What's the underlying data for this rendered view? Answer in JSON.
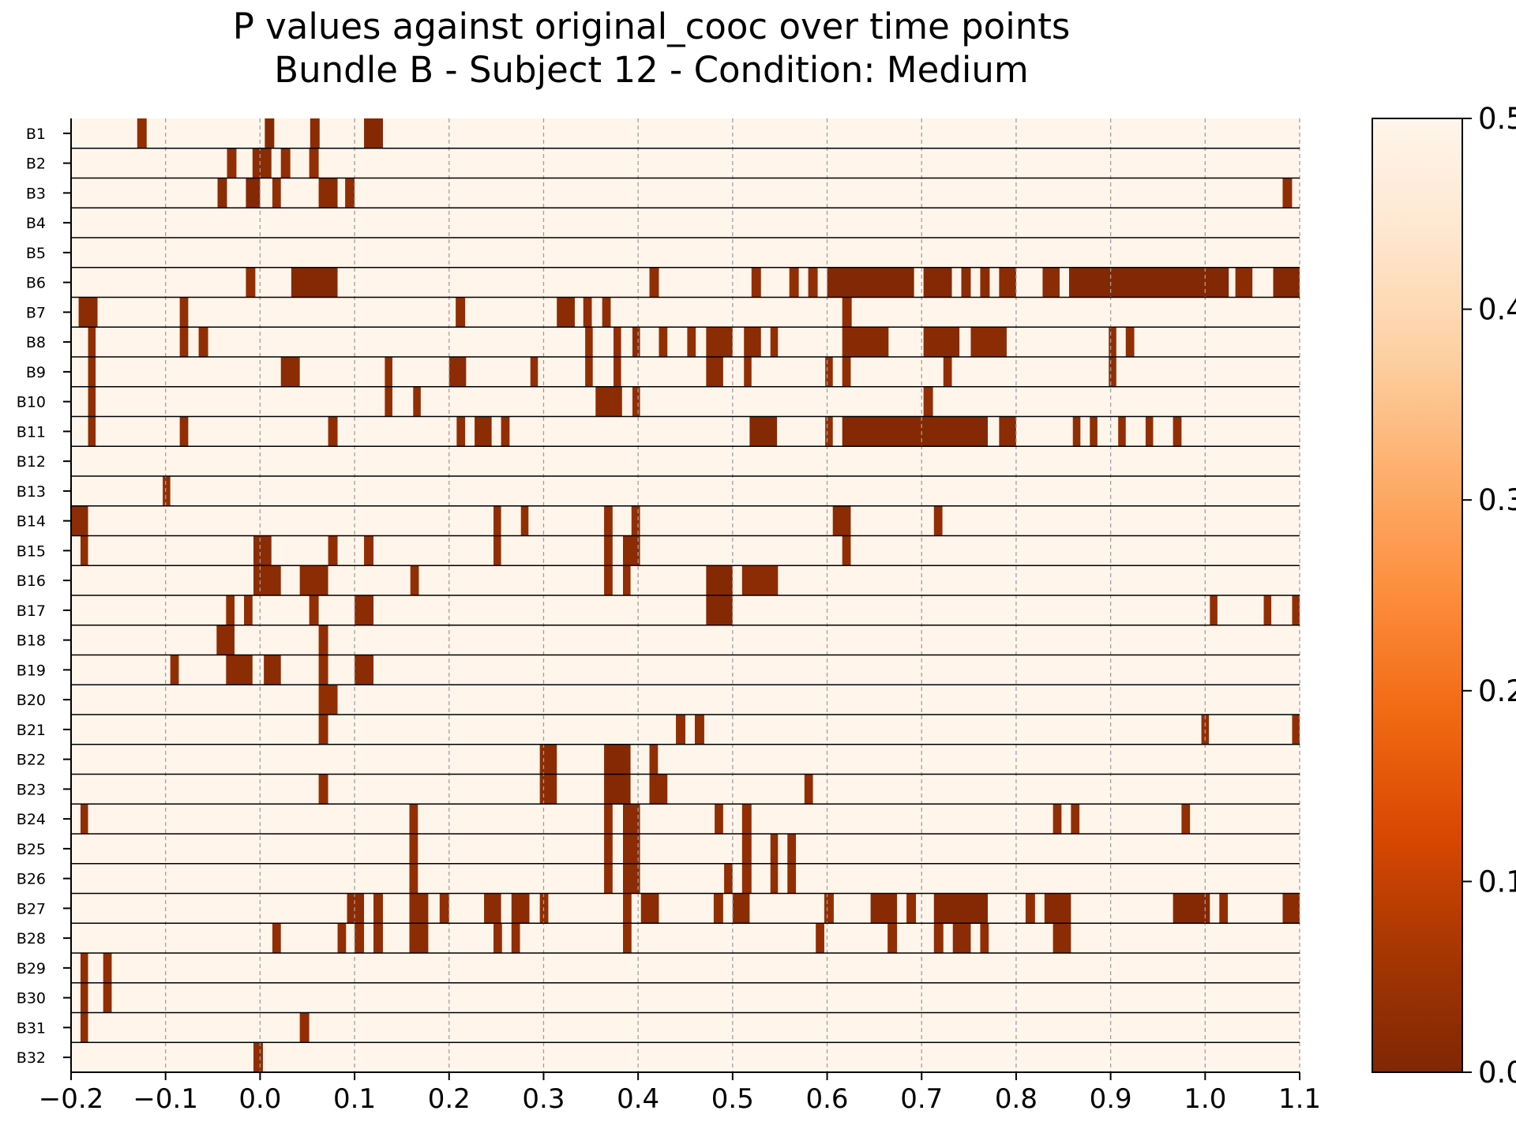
{
  "chart_data": {
    "type": "heatmap",
    "title": "P values against original_cooc over time points",
    "subtitle": "Bundle B - Subject 12 - Condition: Medium",
    "xlim": [
      -0.2,
      1.1
    ],
    "xticks": [
      "-0.2",
      "-0.1",
      "0.0",
      "0.1",
      "0.2",
      "0.3",
      "0.4",
      "0.5",
      "0.6",
      "0.7",
      "0.8",
      "0.9",
      "1.0",
      "1.1"
    ],
    "xtick_values": [
      -0.2,
      -0.1,
      0.0,
      0.1,
      0.2,
      0.3,
      0.4,
      0.5,
      0.6,
      0.7,
      0.8,
      0.9,
      1.0,
      1.1
    ],
    "grid_x": true,
    "colormap": {
      "name": "Oranges_r",
      "stops": [
        "#7f2704",
        "#a63603",
        "#d94801",
        "#f16913",
        "#fd8d3c",
        "#fdae6b",
        "#fdd0a2",
        "#fee6ce",
        "#fff5eb"
      ]
    },
    "colorbar": {
      "range": [
        0.0,
        0.5
      ],
      "ticks": [
        "0.0",
        "0.1",
        "0.2",
        "0.3",
        "0.4",
        "0.5"
      ],
      "tick_values": [
        0.0,
        0.1,
        0.2,
        0.3,
        0.4,
        0.5
      ]
    },
    "background_value": 0.5,
    "rows": [
      {
        "label": "B1",
        "segments": [
          [
            -0.13,
            -0.12,
            0.03
          ],
          [
            0.005,
            0.015,
            0.01
          ],
          [
            0.053,
            0.063,
            0.02
          ],
          [
            0.11,
            0.13,
            0.01
          ]
        ]
      },
      {
        "label": "B2",
        "segments": [
          [
            -0.035,
            -0.025,
            0.03
          ],
          [
            -0.008,
            0.012,
            0.02
          ],
          [
            0.022,
            0.032,
            0.03
          ],
          [
            0.052,
            0.062,
            0.03
          ]
        ]
      },
      {
        "label": "B3",
        "segments": [
          [
            -0.045,
            -0.035,
            0.02
          ],
          [
            -0.015,
            0.0,
            0.01
          ],
          [
            0.013,
            0.022,
            0.03
          ],
          [
            0.062,
            0.082,
            0.02
          ],
          [
            0.09,
            0.1,
            0.03
          ],
          [
            1.082,
            1.092,
            0.03
          ]
        ]
      },
      {
        "label": "B4",
        "segments": []
      },
      {
        "label": "B5",
        "segments": []
      },
      {
        "label": "B6",
        "segments": [
          [
            -0.015,
            -0.005,
            0.03
          ],
          [
            0.033,
            0.082,
            0.01
          ],
          [
            0.412,
            0.422,
            0.03
          ],
          [
            0.52,
            0.53,
            0.03
          ],
          [
            0.56,
            0.57,
            0.03
          ],
          [
            0.58,
            0.59,
            0.03
          ],
          [
            0.6,
            0.692,
            0.005
          ],
          [
            0.702,
            0.732,
            0.01
          ],
          [
            0.742,
            0.752,
            0.02
          ],
          [
            0.762,
            0.772,
            0.02
          ],
          [
            0.782,
            0.8,
            0.02
          ],
          [
            0.828,
            0.846,
            0.02
          ],
          [
            0.856,
            1.025,
            0.005
          ],
          [
            1.032,
            1.05,
            0.02
          ],
          [
            1.072,
            1.1,
            0.01
          ]
        ]
      },
      {
        "label": "B7",
        "segments": [
          [
            -0.192,
            -0.172,
            0.02
          ],
          [
            -0.085,
            -0.076,
            0.03
          ],
          [
            0.207,
            0.217,
            0.03
          ],
          [
            0.314,
            0.333,
            0.02
          ],
          [
            0.342,
            0.351,
            0.03
          ],
          [
            0.362,
            0.371,
            0.03
          ],
          [
            0.616,
            0.626,
            0.03
          ]
        ]
      },
      {
        "label": "B8",
        "segments": [
          [
            -0.182,
            -0.174,
            0.03
          ],
          [
            -0.085,
            -0.076,
            0.03
          ],
          [
            -0.065,
            -0.055,
            0.03
          ],
          [
            0.344,
            0.352,
            0.03
          ],
          [
            0.374,
            0.382,
            0.03
          ],
          [
            0.394,
            0.402,
            0.02
          ],
          [
            0.422,
            0.431,
            0.03
          ],
          [
            0.452,
            0.461,
            0.03
          ],
          [
            0.472,
            0.5,
            0.02
          ],
          [
            0.512,
            0.53,
            0.02
          ],
          [
            0.54,
            0.548,
            0.03
          ],
          [
            0.616,
            0.665,
            0.015
          ],
          [
            0.702,
            0.74,
            0.015
          ],
          [
            0.752,
            0.79,
            0.02
          ],
          [
            0.898,
            0.906,
            0.03
          ],
          [
            0.916,
            0.925,
            0.03
          ]
        ]
      },
      {
        "label": "B9",
        "segments": [
          [
            -0.182,
            -0.174,
            0.03
          ],
          [
            0.022,
            0.042,
            0.02
          ],
          [
            0.132,
            0.14,
            0.03
          ],
          [
            0.2,
            0.218,
            0.02
          ],
          [
            0.286,
            0.294,
            0.03
          ],
          [
            0.344,
            0.352,
            0.03
          ],
          [
            0.374,
            0.382,
            0.03
          ],
          [
            0.472,
            0.49,
            0.02
          ],
          [
            0.512,
            0.52,
            0.03
          ],
          [
            0.598,
            0.606,
            0.03
          ],
          [
            0.616,
            0.625,
            0.03
          ],
          [
            0.723,
            0.732,
            0.03
          ],
          [
            0.898,
            0.906,
            0.03
          ]
        ]
      },
      {
        "label": "B10",
        "segments": [
          [
            -0.182,
            -0.174,
            0.03
          ],
          [
            0.132,
            0.14,
            0.03
          ],
          [
            0.162,
            0.17,
            0.03
          ],
          [
            0.355,
            0.383,
            0.02
          ],
          [
            0.394,
            0.402,
            0.03
          ],
          [
            0.702,
            0.712,
            0.03
          ]
        ]
      },
      {
        "label": "B11",
        "segments": [
          [
            -0.182,
            -0.174,
            0.03
          ],
          [
            -0.085,
            -0.076,
            0.03
          ],
          [
            0.072,
            0.082,
            0.03
          ],
          [
            0.208,
            0.217,
            0.03
          ],
          [
            0.227,
            0.245,
            0.02
          ],
          [
            0.255,
            0.264,
            0.03
          ],
          [
            0.518,
            0.547,
            0.01
          ],
          [
            0.598,
            0.606,
            0.03
          ],
          [
            0.616,
            0.77,
            0.008
          ],
          [
            0.782,
            0.8,
            0.02
          ],
          [
            0.86,
            0.868,
            0.03
          ],
          [
            0.878,
            0.886,
            0.03
          ],
          [
            0.908,
            0.916,
            0.03
          ],
          [
            0.937,
            0.945,
            0.03
          ],
          [
            0.966,
            0.975,
            0.03
          ]
        ]
      },
      {
        "label": "B12",
        "segments": []
      },
      {
        "label": "B13",
        "segments": [
          [
            -0.103,
            -0.095,
            0.03
          ]
        ]
      },
      {
        "label": "B14",
        "segments": [
          [
            -0.2,
            -0.182,
            0.02
          ],
          [
            0.247,
            0.255,
            0.03
          ],
          [
            0.276,
            0.284,
            0.03
          ],
          [
            0.364,
            0.373,
            0.03
          ],
          [
            0.393,
            0.402,
            0.03
          ],
          [
            0.606,
            0.625,
            0.02
          ],
          [
            0.713,
            0.722,
            0.03
          ]
        ]
      },
      {
        "label": "B15",
        "segments": [
          [
            -0.19,
            -0.182,
            0.03
          ],
          [
            -0.007,
            0.012,
            0.02
          ],
          [
            0.072,
            0.082,
            0.03
          ],
          [
            0.11,
            0.12,
            0.03
          ],
          [
            0.247,
            0.255,
            0.03
          ],
          [
            0.364,
            0.373,
            0.03
          ],
          [
            0.384,
            0.402,
            0.02
          ],
          [
            0.616,
            0.625,
            0.03
          ]
        ]
      },
      {
        "label": "B16",
        "segments": [
          [
            -0.007,
            0.022,
            0.02
          ],
          [
            0.042,
            0.072,
            0.02
          ],
          [
            0.159,
            0.168,
            0.03
          ],
          [
            0.364,
            0.373,
            0.03
          ],
          [
            0.384,
            0.392,
            0.03
          ],
          [
            0.472,
            0.5,
            0.01
          ],
          [
            0.51,
            0.548,
            0.02
          ]
        ]
      },
      {
        "label": "B17",
        "segments": [
          [
            -0.036,
            -0.027,
            0.03
          ],
          [
            -0.017,
            -0.008,
            0.03
          ],
          [
            0.052,
            0.062,
            0.03
          ],
          [
            0.1,
            0.12,
            0.02
          ],
          [
            0.472,
            0.5,
            0.01
          ],
          [
            1.005,
            1.013,
            0.03
          ],
          [
            1.062,
            1.07,
            0.03
          ],
          [
            1.092,
            1.1,
            0.03
          ]
        ]
      },
      {
        "label": "B18",
        "segments": [
          [
            -0.046,
            -0.027,
            0.02
          ],
          [
            0.062,
            0.072,
            0.03
          ]
        ]
      },
      {
        "label": "B19",
        "segments": [
          [
            -0.095,
            -0.086,
            0.03
          ],
          [
            -0.036,
            -0.008,
            0.02
          ],
          [
            0.004,
            0.022,
            0.02
          ],
          [
            0.062,
            0.072,
            0.03
          ],
          [
            0.1,
            0.12,
            0.02
          ]
        ]
      },
      {
        "label": "B20",
        "segments": [
          [
            0.062,
            0.082,
            0.03
          ]
        ]
      },
      {
        "label": "B21",
        "segments": [
          [
            0.062,
            0.072,
            0.03
          ],
          [
            0.44,
            0.45,
            0.03
          ],
          [
            0.46,
            0.47,
            0.03
          ],
          [
            0.996,
            1.004,
            0.03
          ],
          [
            1.092,
            1.1,
            0.03
          ]
        ]
      },
      {
        "label": "B22",
        "segments": [
          [
            0.296,
            0.314,
            0.02
          ],
          [
            0.364,
            0.392,
            0.01
          ],
          [
            0.412,
            0.421,
            0.03
          ]
        ]
      },
      {
        "label": "B23",
        "segments": [
          [
            0.062,
            0.072,
            0.03
          ],
          [
            0.296,
            0.314,
            0.02
          ],
          [
            0.364,
            0.392,
            0.01
          ],
          [
            0.412,
            0.431,
            0.02
          ],
          [
            0.576,
            0.585,
            0.03
          ]
        ]
      },
      {
        "label": "B24",
        "segments": [
          [
            -0.19,
            -0.182,
            0.03
          ],
          [
            0.158,
            0.167,
            0.03
          ],
          [
            0.364,
            0.373,
            0.03
          ],
          [
            0.384,
            0.402,
            0.02
          ],
          [
            0.481,
            0.49,
            0.03
          ],
          [
            0.51,
            0.52,
            0.03
          ],
          [
            0.839,
            0.848,
            0.03
          ],
          [
            0.858,
            0.867,
            0.03
          ],
          [
            0.975,
            0.984,
            0.03
          ]
        ]
      },
      {
        "label": "B25",
        "segments": [
          [
            0.158,
            0.167,
            0.03
          ],
          [
            0.364,
            0.373,
            0.03
          ],
          [
            0.384,
            0.402,
            0.02
          ],
          [
            0.51,
            0.52,
            0.03
          ],
          [
            0.54,
            0.548,
            0.03
          ],
          [
            0.558,
            0.567,
            0.03
          ]
        ]
      },
      {
        "label": "B26",
        "segments": [
          [
            0.158,
            0.167,
            0.03
          ],
          [
            0.364,
            0.373,
            0.03
          ],
          [
            0.384,
            0.402,
            0.02
          ],
          [
            0.491,
            0.5,
            0.03
          ],
          [
            0.51,
            0.52,
            0.03
          ],
          [
            0.54,
            0.548,
            0.03
          ],
          [
            0.558,
            0.567,
            0.03
          ]
        ]
      },
      {
        "label": "B27",
        "segments": [
          [
            0.092,
            0.11,
            0.02
          ],
          [
            0.12,
            0.13,
            0.03
          ],
          [
            0.158,
            0.178,
            0.02
          ],
          [
            0.19,
            0.2,
            0.03
          ],
          [
            0.237,
            0.255,
            0.02
          ],
          [
            0.266,
            0.285,
            0.02
          ],
          [
            0.296,
            0.305,
            0.03
          ],
          [
            0.384,
            0.393,
            0.03
          ],
          [
            0.403,
            0.422,
            0.02
          ],
          [
            0.48,
            0.49,
            0.03
          ],
          [
            0.5,
            0.518,
            0.02
          ],
          [
            0.597,
            0.607,
            0.03
          ],
          [
            0.646,
            0.674,
            0.015
          ],
          [
            0.684,
            0.694,
            0.03
          ],
          [
            0.713,
            0.77,
            0.01
          ],
          [
            0.81,
            0.82,
            0.03
          ],
          [
            0.83,
            0.858,
            0.015
          ],
          [
            0.966,
            1.005,
            0.01
          ],
          [
            1.015,
            1.024,
            0.03
          ],
          [
            1.082,
            1.1,
            0.02
          ]
        ]
      },
      {
        "label": "B28",
        "segments": [
          [
            0.013,
            0.022,
            0.03
          ],
          [
            0.082,
            0.091,
            0.03
          ],
          [
            0.1,
            0.11,
            0.03
          ],
          [
            0.12,
            0.13,
            0.03
          ],
          [
            0.158,
            0.178,
            0.02
          ],
          [
            0.247,
            0.256,
            0.03
          ],
          [
            0.266,
            0.275,
            0.03
          ],
          [
            0.384,
            0.393,
            0.03
          ],
          [
            0.588,
            0.597,
            0.03
          ],
          [
            0.664,
            0.674,
            0.03
          ],
          [
            0.713,
            0.723,
            0.03
          ],
          [
            0.733,
            0.752,
            0.02
          ],
          [
            0.762,
            0.771,
            0.03
          ],
          [
            0.839,
            0.858,
            0.02
          ]
        ]
      },
      {
        "label": "B29",
        "segments": [
          [
            -0.19,
            -0.182,
            0.03
          ],
          [
            -0.166,
            -0.157,
            0.03
          ]
        ]
      },
      {
        "label": "B30",
        "segments": [
          [
            -0.19,
            -0.182,
            0.03
          ],
          [
            -0.166,
            -0.157,
            0.03
          ]
        ]
      },
      {
        "label": "B31",
        "segments": [
          [
            -0.19,
            -0.182,
            0.03
          ],
          [
            0.042,
            0.052,
            0.03
          ]
        ]
      },
      {
        "label": "B32",
        "segments": [
          [
            -0.007,
            0.003,
            0.03
          ]
        ]
      }
    ]
  }
}
